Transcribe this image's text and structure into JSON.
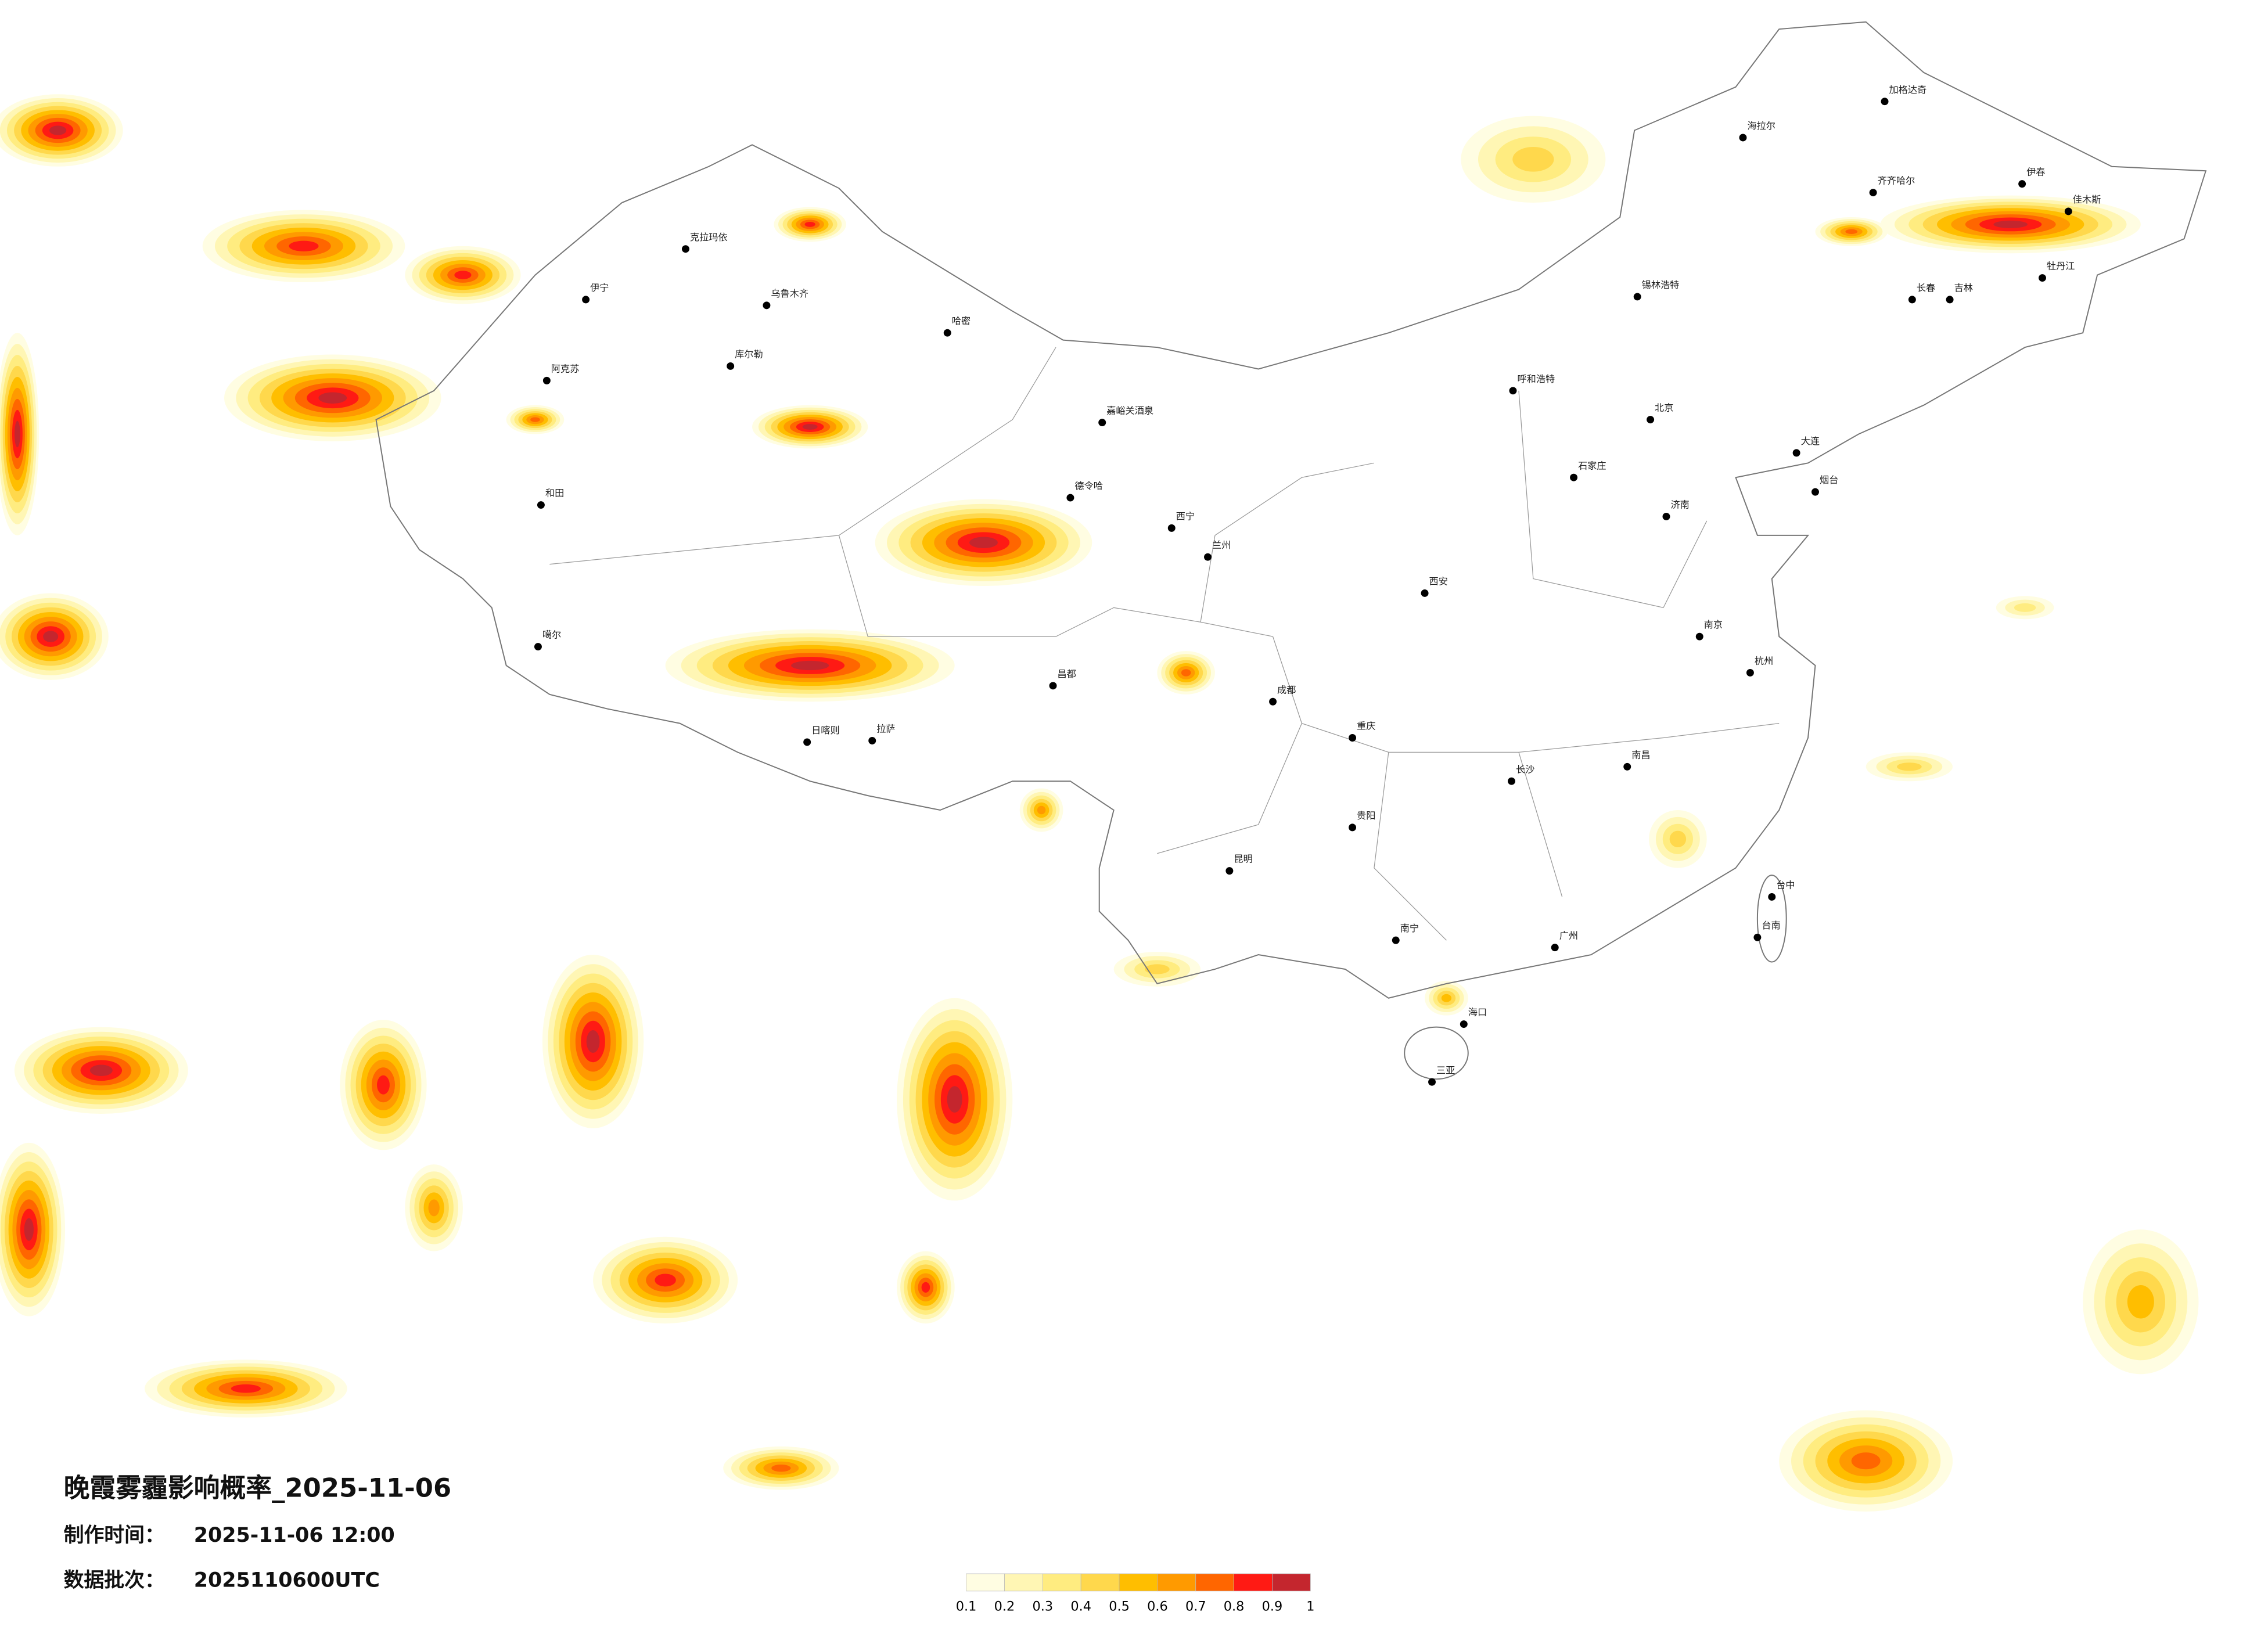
{
  "title": "晚霞雾霾影响概率_2025-11-06",
  "info": [
    {
      "label": "制作时间：",
      "value": "2025-11-06 12:00"
    },
    {
      "label": "数据批次：",
      "value": "2025110600UTC"
    }
  ],
  "legend": {
    "ticks": [
      0.1,
      0.2,
      0.3,
      0.4,
      0.5,
      0.6,
      0.7,
      0.8,
      0.9,
      1
    ],
    "colors": [
      "#fffde2",
      "#fff6b4",
      "#ffec80",
      "#ffd84c",
      "#ffbe00",
      "#ff9a00",
      "#ff6600",
      "#ff1a14",
      "#c4262e"
    ]
  },
  "cities": [
    "伊宁",
    "克拉玛依",
    "乌鲁木齐",
    "库尔勒",
    "阿克苏",
    "和田",
    "哈密",
    "嘉峪关酒泉",
    "德令哈",
    "噶尔",
    "日喀则",
    "拉萨",
    "昌都",
    "呼和浩特",
    "锡林浩特",
    "海拉尔",
    "加格达奇",
    "齐齐哈尔",
    "伊春",
    "佳木斯",
    "牡丹江",
    "长春",
    "吉林",
    "大连",
    "烟台",
    "济南",
    "北京",
    "石家庄",
    "西安",
    "成都",
    "重庆",
    "贵阳",
    "昆明",
    "南宁",
    "海口",
    "三亚",
    "广州",
    "长沙",
    "南昌",
    "杭州",
    "南京",
    "台中",
    "台南",
    "兰州",
    "西宁"
  ]
}
